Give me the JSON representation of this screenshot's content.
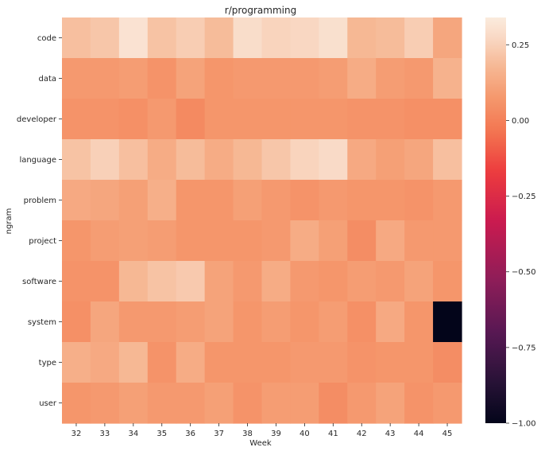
{
  "chart_data": {
    "type": "heatmap",
    "title": "r/programming",
    "xlabel": "Week",
    "ylabel": "ngram",
    "x_categories": [
      "32",
      "33",
      "34",
      "35",
      "36",
      "37",
      "38",
      "39",
      "40",
      "41",
      "42",
      "43",
      "44",
      "45"
    ],
    "y_categories": [
      "code",
      "data",
      "developer",
      "language",
      "problem",
      "project",
      "software",
      "system",
      "type",
      "user"
    ],
    "values": [
      [
        0.2,
        0.22,
        0.31,
        0.21,
        0.24,
        0.19,
        0.29,
        0.26,
        0.27,
        0.3,
        0.18,
        0.19,
        0.24,
        0.12
      ],
      [
        0.08,
        0.08,
        0.09,
        0.06,
        0.11,
        0.07,
        0.08,
        0.08,
        0.08,
        0.09,
        0.14,
        0.09,
        0.08,
        0.16
      ],
      [
        0.06,
        0.06,
        0.05,
        0.08,
        0.03,
        0.07,
        0.07,
        0.07,
        0.07,
        0.07,
        0.06,
        0.06,
        0.05,
        0.05
      ],
      [
        0.21,
        0.25,
        0.2,
        0.14,
        0.19,
        0.14,
        0.18,
        0.22,
        0.26,
        0.28,
        0.13,
        0.1,
        0.12,
        0.2
      ],
      [
        0.13,
        0.12,
        0.1,
        0.15,
        0.07,
        0.07,
        0.1,
        0.08,
        0.06,
        0.08,
        0.07,
        0.07,
        0.06,
        0.08
      ],
      [
        0.07,
        0.09,
        0.1,
        0.09,
        0.07,
        0.07,
        0.07,
        0.08,
        0.14,
        0.1,
        0.04,
        0.13,
        0.08,
        0.08
      ],
      [
        0.06,
        0.06,
        0.18,
        0.21,
        0.23,
        0.11,
        0.08,
        0.14,
        0.08,
        0.07,
        0.09,
        0.08,
        0.11,
        0.07
      ],
      [
        0.05,
        0.12,
        0.08,
        0.08,
        0.09,
        0.11,
        0.07,
        0.09,
        0.07,
        0.09,
        0.05,
        0.13,
        0.07,
        -1.0
      ],
      [
        0.15,
        0.13,
        0.18,
        0.06,
        0.14,
        0.07,
        0.07,
        0.07,
        0.08,
        0.08,
        0.06,
        0.07,
        0.07,
        0.04
      ],
      [
        0.07,
        0.08,
        0.1,
        0.08,
        0.08,
        0.1,
        0.06,
        0.09,
        0.09,
        0.04,
        0.08,
        0.11,
        0.06,
        0.08
      ]
    ],
    "vmin": -1.0,
    "vmax": 0.34,
    "colorbar_ticks": [
      0.25,
      0.0,
      -0.25,
      -0.5,
      -0.75,
      -1.0
    ],
    "colorbar_tick_labels": [
      "0.25",
      "0.00",
      "−0.25",
      "−0.50",
      "−0.75",
      "−1.00"
    ],
    "colormap": "rocket",
    "grid": false,
    "legend": "colorbar-right"
  }
}
